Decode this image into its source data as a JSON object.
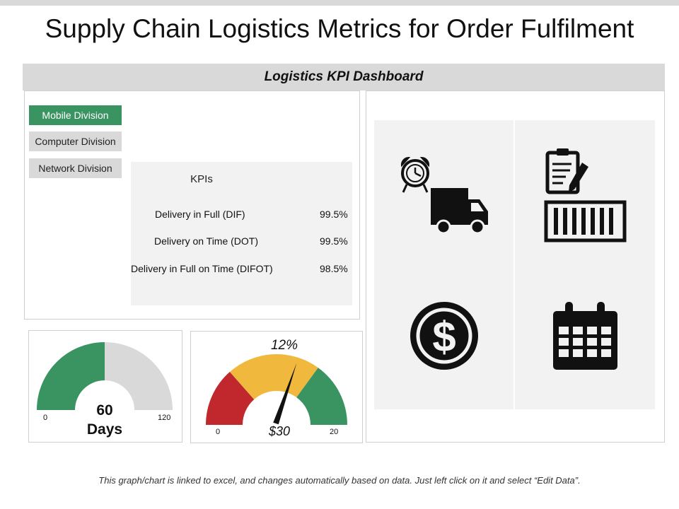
{
  "page": {
    "title": "Supply Chain Logistics Metrics for Order Fulfilment",
    "footnote": "This graph/chart is linked to excel, and changes automatically based on data.  Just left click on it and select “Edit Data”."
  },
  "dashboard": {
    "header": "Logistics KPI Dashboard",
    "divisions": [
      {
        "label": "Mobile Division",
        "active": true
      },
      {
        "label": "Computer Division",
        "active": false
      },
      {
        "label": "Network Division",
        "active": false
      }
    ],
    "kpis": {
      "title": "KPIs",
      "rows": [
        {
          "label": "Delivery in Full (DIF)",
          "value": "99.5%"
        },
        {
          "label": "Delivery on Time (DOT)",
          "value": "99.5%"
        },
        {
          "label": "Delivery in Full on Time (DIFOT)",
          "value": "98.5%"
        }
      ]
    },
    "icons": [
      "alarm-clock-truck-icon",
      "clipboard-container-icon",
      "dollar-coin-icon",
      "calendar-icon"
    ]
  },
  "gauge_days": {
    "min_label": "0",
    "max_label": "120",
    "value_label": "60",
    "unit_label": "Days",
    "min": 0,
    "max": 120,
    "value": 60,
    "fill_color": "#3a9461",
    "track_color": "#d9d9d9"
  },
  "gauge_cost": {
    "min_label": "0",
    "max_label": "20",
    "percent_label": "12%",
    "value_label": "$30",
    "needle_fraction": 0.6,
    "band_colors": [
      "#c0282e",
      "#f0b93d",
      "#3a9461"
    ]
  },
  "colors": {
    "accent_green": "#3a9461",
    "header_gray": "#d9d9d9",
    "panel_gray": "#f2f2f2"
  }
}
